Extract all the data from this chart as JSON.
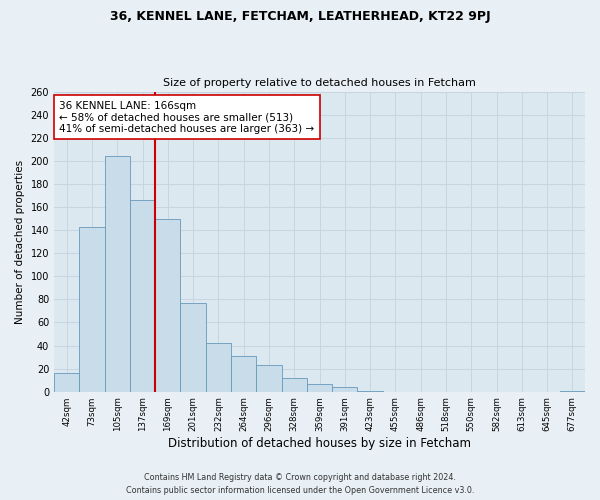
{
  "title1": "36, KENNEL LANE, FETCHAM, LEATHERHEAD, KT22 9PJ",
  "title2": "Size of property relative to detached houses in Fetcham",
  "xlabel": "Distribution of detached houses by size in Fetcham",
  "ylabel": "Number of detached properties",
  "bar_heights": [
    16,
    143,
    204,
    166,
    150,
    77,
    42,
    31,
    23,
    12,
    7,
    4,
    1,
    0,
    0,
    0,
    0,
    0,
    0,
    0,
    1
  ],
  "x_labels": [
    "42sqm",
    "73sqm",
    "105sqm",
    "137sqm",
    "169sqm",
    "201sqm",
    "232sqm",
    "264sqm",
    "296sqm",
    "328sqm",
    "359sqm",
    "391sqm",
    "423sqm",
    "455sqm",
    "486sqm",
    "518sqm",
    "550sqm",
    "582sqm",
    "613sqm",
    "645sqm",
    "677sqm"
  ],
  "vline_index": 3.5,
  "annotation_text": "36 KENNEL LANE: 166sqm\n← 58% of detached houses are smaller (513)\n41% of semi-detached houses are larger (363) →",
  "bar_color": "#c9dcea",
  "bar_edge_color": "#6699bb",
  "vline_color": "#cc0000",
  "annotation_box_color": "#ffffff",
  "annotation_box_edge": "#cc0000",
  "grid_color": "#c8d4e0",
  "bg_color": "#dce8f0",
  "fig_bg_color": "#e8f0f5",
  "footer1": "Contains HM Land Registry data © Crown copyright and database right 2024.",
  "footer2": "Contains public sector information licensed under the Open Government Licence v3.0.",
  "ylim_max": 260,
  "yticks": [
    0,
    20,
    40,
    60,
    80,
    100,
    120,
    140,
    160,
    180,
    200,
    220,
    240,
    260
  ]
}
